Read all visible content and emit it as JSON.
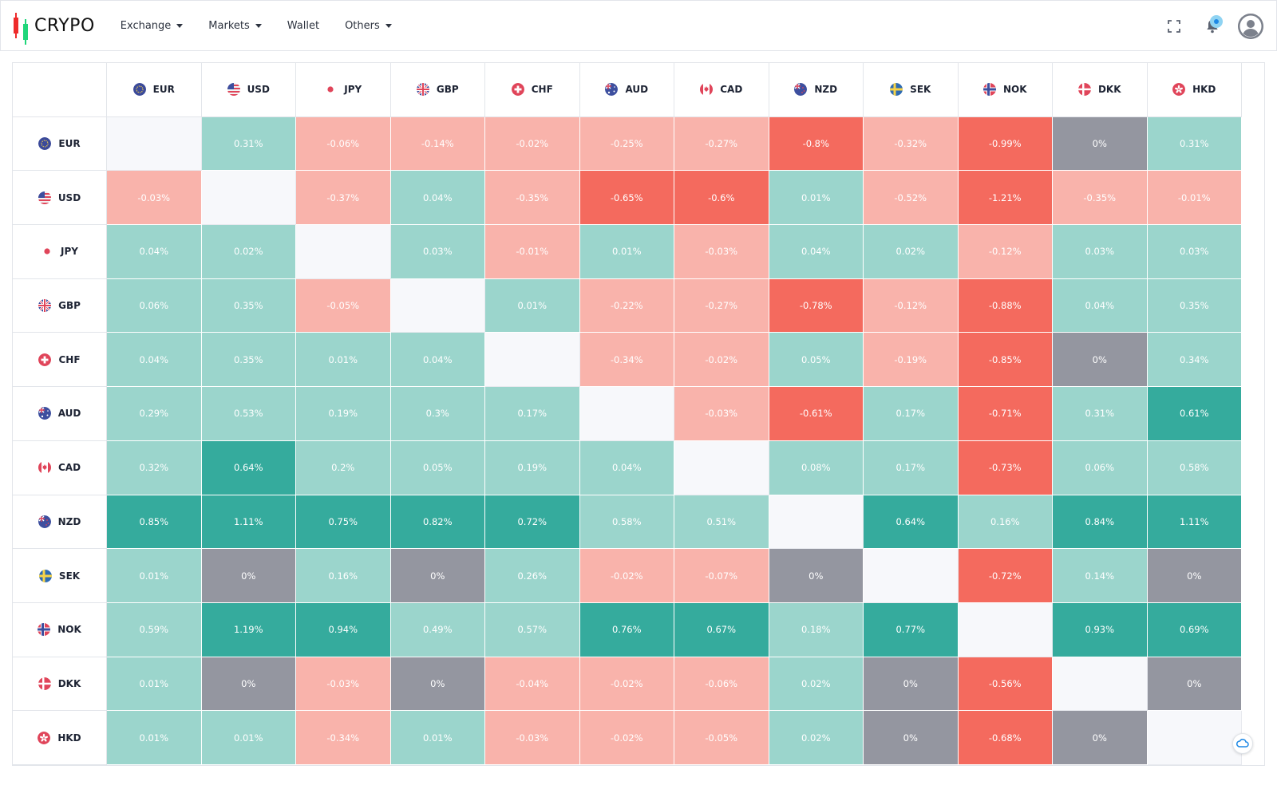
{
  "header": {
    "logo_text": "CRYPO",
    "nav": [
      {
        "label": "Exchange",
        "dropdown": true
      },
      {
        "label": "Markets",
        "dropdown": true
      },
      {
        "label": "Wallet",
        "dropdown": false
      },
      {
        "label": "Others",
        "dropdown": true
      }
    ],
    "icons": [
      "fullscreen-icon",
      "bell-icon",
      "user-avatar"
    ]
  },
  "colors": {
    "strong_up": "#35ab9d",
    "up": "#9bd5cc",
    "neutral": "#9496a0",
    "down": "#f9b3ab",
    "strong_down": "#f46a5e",
    "self": "#f7f8fb"
  },
  "heatmap": {
    "currencies": [
      {
        "code": "EUR",
        "flag": "eu"
      },
      {
        "code": "USD",
        "flag": "us"
      },
      {
        "code": "JPY",
        "flag": "jp"
      },
      {
        "code": "GBP",
        "flag": "gb"
      },
      {
        "code": "CHF",
        "flag": "ch"
      },
      {
        "code": "AUD",
        "flag": "au"
      },
      {
        "code": "CAD",
        "flag": "ca"
      },
      {
        "code": "NZD",
        "flag": "nz"
      },
      {
        "code": "SEK",
        "flag": "se"
      },
      {
        "code": "NOK",
        "flag": "no"
      },
      {
        "code": "DKK",
        "flag": "dk"
      },
      {
        "code": "HKD",
        "flag": "hk"
      }
    ],
    "rows": [
      [
        "",
        "0.31%",
        "-0.06%",
        "-0.14%",
        "-0.02%",
        "-0.25%",
        "-0.27%",
        "-0.8%",
        "-0.32%",
        "-0.99%",
        "0%",
        "0.31%"
      ],
      [
        "-0.03%",
        "",
        "-0.37%",
        "0.04%",
        "-0.35%",
        "-0.65%",
        "-0.6%",
        "0.01%",
        "-0.52%",
        "-1.21%",
        "-0.35%",
        "-0.01%"
      ],
      [
        "0.04%",
        "0.02%",
        "",
        "0.03%",
        "-0.01%",
        "0.01%",
        "-0.03%",
        "0.04%",
        "0.02%",
        "-0.12%",
        "0.03%",
        "0.03%"
      ],
      [
        "0.06%",
        "0.35%",
        "-0.05%",
        "",
        "0.01%",
        "-0.22%",
        "-0.27%",
        "-0.78%",
        "-0.12%",
        "-0.88%",
        "0.04%",
        "0.35%"
      ],
      [
        "0.04%",
        "0.35%",
        "0.01%",
        "0.04%",
        "",
        "-0.34%",
        "-0.02%",
        "0.05%",
        "-0.19%",
        "-0.85%",
        "0%",
        "0.34%"
      ],
      [
        "0.29%",
        "0.53%",
        "0.19%",
        "0.3%",
        "0.17%",
        "",
        "-0.03%",
        "-0.61%",
        "0.17%",
        "-0.71%",
        "0.31%",
        "0.61%"
      ],
      [
        "0.32%",
        "0.64%",
        "0.2%",
        "0.05%",
        "0.19%",
        "0.04%",
        "",
        "0.08%",
        "0.17%",
        "-0.73%",
        "0.06%",
        "0.58%"
      ],
      [
        "0.85%",
        "1.11%",
        "0.75%",
        "0.82%",
        "0.72%",
        "0.58%",
        "0.51%",
        "",
        "0.64%",
        "0.16%",
        "0.84%",
        "1.11%"
      ],
      [
        "0.01%",
        "0%",
        "0.16%",
        "0%",
        "0.26%",
        "-0.02%",
        "-0.07%",
        "0%",
        "",
        "-0.72%",
        "0.14%",
        "0%"
      ],
      [
        "0.59%",
        "1.19%",
        "0.94%",
        "0.49%",
        "0.57%",
        "0.76%",
        "0.67%",
        "0.18%",
        "0.77%",
        "",
        "0.93%",
        "0.69%"
      ],
      [
        "0.01%",
        "0%",
        "-0.03%",
        "0%",
        "-0.04%",
        "-0.02%",
        "-0.06%",
        "0.02%",
        "0%",
        "-0.56%",
        "",
        "0%"
      ],
      [
        "0.01%",
        "0.01%",
        "-0.34%",
        "0.01%",
        "-0.03%",
        "-0.02%",
        "-0.05%",
        "0.02%",
        "0%",
        "-0.68%",
        "0%",
        ""
      ]
    ]
  }
}
